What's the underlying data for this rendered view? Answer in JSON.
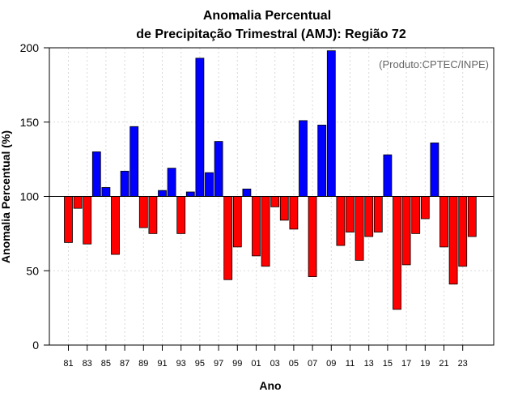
{
  "chart_data": {
    "type": "bar",
    "title": "Anomalia Percentual",
    "subtitle": "de Precipitação Trimestral (AMJ): Região 72",
    "xlabel": "Ano",
    "ylabel": "Anomalia Percentual (%)",
    "annotation": "(Produto:CPTEC/INPE)",
    "ylim": [
      0,
      200
    ],
    "yticks": [
      0,
      50,
      100,
      150,
      200
    ],
    "baseline": 100,
    "grid": true,
    "colors": {
      "above": "#0000ff",
      "below": "#ff0000",
      "edge": "#000000",
      "baseline": "#000000"
    },
    "categories": [
      "81",
      "82",
      "83",
      "84",
      "85",
      "86",
      "87",
      "88",
      "89",
      "90",
      "91",
      "92",
      "93",
      "94",
      "95",
      "96",
      "97",
      "98",
      "99",
      "00",
      "01",
      "02",
      "03",
      "04",
      "05",
      "06",
      "07",
      "08",
      "09",
      "10",
      "11",
      "12",
      "13",
      "14",
      "15",
      "16",
      "17",
      "18",
      "19",
      "20",
      "21",
      "22",
      "23",
      "24"
    ],
    "xtick_labels": [
      "81",
      "83",
      "85",
      "87",
      "89",
      "91",
      "93",
      "95",
      "97",
      "99",
      "01",
      "03",
      "05",
      "07",
      "09",
      "11",
      "13",
      "15",
      "17",
      "19",
      "21",
      "23"
    ],
    "values": [
      69,
      92,
      68,
      130,
      106,
      61,
      117,
      147,
      79,
      75,
      104,
      119,
      75,
      103,
      193,
      116,
      137,
      44,
      66,
      105,
      60,
      53,
      93,
      84,
      78,
      151,
      46,
      148,
      198,
      67,
      76,
      57,
      73,
      76,
      128,
      24,
      54,
      75,
      85,
      136,
      66,
      41,
      53,
      73
    ]
  }
}
